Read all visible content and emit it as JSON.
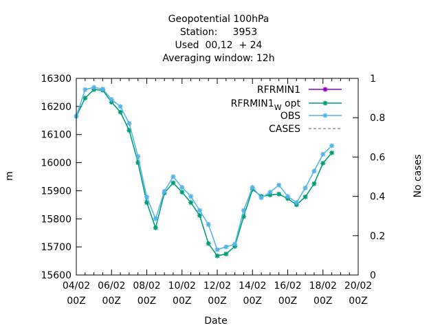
{
  "chart_data": {
    "type": "line",
    "title_lines": [
      "Geopotential 100hPa",
      "Station:     3953",
      "Used  00,12  + 24",
      "Averaging window: 12h"
    ],
    "xlabel": "Date",
    "ylabel": "m",
    "y2label": "No cases",
    "ylim": [
      15600,
      16300
    ],
    "y2lim": [
      0,
      1
    ],
    "xlim": [
      0,
      16
    ],
    "x_ticks": [
      {
        "x": 0,
        "label1": "04/02",
        "label2": "00Z"
      },
      {
        "x": 2,
        "label1": "06/02",
        "label2": "00Z"
      },
      {
        "x": 4,
        "label1": "08/02",
        "label2": "00Z"
      },
      {
        "x": 6,
        "label1": "10/02",
        "label2": "00Z"
      },
      {
        "x": 8,
        "label1": "12/02",
        "label2": "00Z"
      },
      {
        "x": 10,
        "label1": "14/02",
        "label2": "00Z"
      },
      {
        "x": 12,
        "label1": "16/02",
        "label2": "00Z"
      },
      {
        "x": 14,
        "label1": "18/02",
        "label2": "00Z"
      },
      {
        "x": 16,
        "label1": "20/02",
        "label2": "00Z"
      }
    ],
    "y_ticks": [
      "15600",
      "15700",
      "15800",
      "15900",
      "16000",
      "16100",
      "16200",
      "16300"
    ],
    "y2_ticks": [
      {
        "v": 0,
        "label": "0"
      },
      {
        "v": 0.2,
        "label": "0.2"
      },
      {
        "v": 0.4,
        "label": "0.4"
      },
      {
        "v": 0.6,
        "label": "0.6"
      },
      {
        "v": 0.8,
        "label": "0.8"
      },
      {
        "v": 1,
        "label": "1"
      }
    ],
    "legend_position": "top-right",
    "series": [
      {
        "name": "RFRMIN1",
        "color": "#9400d3",
        "marker": "star",
        "dash": "",
        "x": [],
        "values": []
      },
      {
        "name": "RFRMIN1",
        "subscript": "W",
        "suffix": " opt",
        "color": "#009e73",
        "marker": "star",
        "dash": "",
        "x": [
          0,
          0.5,
          1,
          1.5,
          2,
          2.5,
          3,
          3.5,
          4,
          4.5,
          5,
          5.5,
          6,
          6.5,
          7,
          7.5,
          8,
          8.5,
          9,
          9.5,
          10,
          10.5,
          11,
          11.5,
          12,
          12.5,
          13,
          13.5,
          14,
          14.5
        ],
        "values": [
          16165,
          16230,
          16260,
          16258,
          16215,
          16180,
          16115,
          16000,
          15858,
          15768,
          15892,
          15928,
          15895,
          15858,
          15812,
          15712,
          15668,
          15675,
          15702,
          15808,
          15905,
          15880,
          15885,
          15888,
          15872,
          15850,
          15878,
          15925,
          15998,
          16035
        ]
      },
      {
        "name": "OBS",
        "color": "#56b4e9",
        "marker": "star",
        "dash": "",
        "x": [
          0,
          0.5,
          1,
          1.5,
          2,
          2.5,
          3,
          3.5,
          4,
          4.5,
          5,
          5.5,
          6,
          6.5,
          7,
          7.5,
          8,
          8.5,
          9,
          9.5,
          10,
          10.5,
          11,
          11.5,
          12,
          12.5,
          13,
          13.5,
          14,
          14.5
        ],
        "values": [
          16165,
          16260,
          16268,
          16262,
          16225,
          16200,
          16140,
          16022,
          15878,
          15800,
          15898,
          15950,
          15912,
          15880,
          15830,
          15780,
          15690,
          15700,
          15710,
          15830,
          15912,
          15875,
          15895,
          15920,
          15880,
          15858,
          15910,
          15970,
          16030,
          16060
        ]
      },
      {
        "name": "CASES",
        "color": "#808080",
        "marker": "none",
        "dash": "4,3",
        "x": [],
        "values": []
      }
    ]
  }
}
